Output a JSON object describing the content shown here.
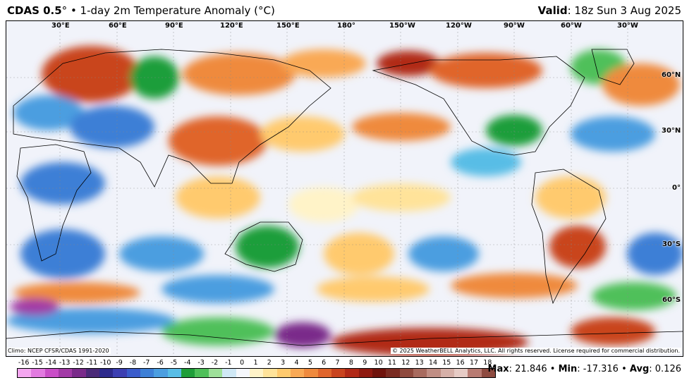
{
  "header": {
    "product": "CDAS 0.5",
    "degree_symbol": "°",
    "description": " • 1-day 2m Temperature Anomaly (°C)",
    "valid_label": "Valid",
    "valid_time": ": 18z Sun 3 Aug 2025"
  },
  "longitude_labels": [
    "30°E",
    "60°E",
    "90°E",
    "120°E",
    "150°E",
    "180°",
    "150°W",
    "120°W",
    "90°W",
    "60°W",
    "30°W"
  ],
  "latitude_labels": [
    "60°N",
    "30°N",
    "0°",
    "30°S",
    "60°S"
  ],
  "footer": {
    "climo": "Climo: NCEP CFSR/CDAS 1991-2020",
    "copyright": "© 2025 WeatherBELL Analytics, LLC. All rights reserved. License required for commercial distribution."
  },
  "colorbar": {
    "labels": [
      "-16",
      "-15",
      "-14",
      "-13",
      "-12",
      "-11",
      "-10",
      "-9",
      "-8",
      "-7",
      "-6",
      "-5",
      "-4",
      "-3",
      "-2",
      "-1",
      "0",
      "1",
      "2",
      "3",
      "4",
      "5",
      "6",
      "7",
      "8",
      "9",
      "10",
      "11",
      "12",
      "13",
      "14",
      "15",
      "16",
      "17",
      "18"
    ],
    "colors": [
      "#f4a6f0",
      "#e27ae0",
      "#c94ec7",
      "#a23aa6",
      "#7a2b8a",
      "#4b2a78",
      "#2d2a8c",
      "#3c3fb2",
      "#3a5ccb",
      "#3d7fd6",
      "#4b9ee0",
      "#58bde6",
      "#1f9e3a",
      "#4fc05a",
      "#9ee09a",
      "#cfe8f5",
      "#f5f7fb",
      "#fff3c8",
      "#ffe39a",
      "#ffca6e",
      "#f9a955",
      "#ef8a3e",
      "#e0652c",
      "#c9441f",
      "#b12917",
      "#8f1a10",
      "#6f130c",
      "#7a2b22",
      "#8f4a3e",
      "#a86b5f",
      "#c08e84",
      "#d6b0a8",
      "#e6cbc5",
      "#b87b72",
      "#8e4b40"
    ]
  },
  "stats": {
    "max_label": "Max",
    "max_value": ": 21.846",
    "min_label": "Min",
    "min_value": ": -17.316",
    "avg_label": "Avg",
    "avg_value": ": 0.126",
    "sep": " • "
  }
}
